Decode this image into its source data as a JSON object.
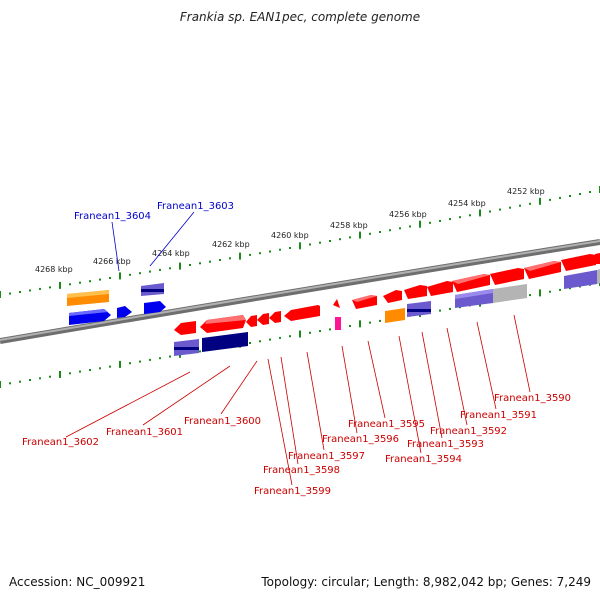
{
  "title": "Frankia sp. EAN1pec, complete genome",
  "footer": {
    "accession": "Accession: NC_009921",
    "topology": "Topology: circular; Length: 8,982,042 bp; Genes: 7,249"
  },
  "colors": {
    "forward_gene": "#ff0000",
    "reverse_gene": "#0000ff",
    "orange_gene": "#ff8c00",
    "purple_gene": "#6a5acd",
    "navy_gene": "#000080",
    "grey_gene": "#b4b4b4",
    "magenta_gene": "#ff1493",
    "tick_green": "#1a8a1a",
    "backbone": "#8c8c8c",
    "label_red": "#cc0000",
    "label_blue": "#0000cc"
  },
  "scale": {
    "ticks": [
      "4268 kbp",
      "4266 kbp",
      "4264 kbp",
      "4262 kbp",
      "4260 kbp",
      "4258 kbp",
      "4256 kbp",
      "4254 kbp",
      "4252 kbp"
    ]
  },
  "labels": {
    "top": [
      "Franean1_3604",
      "Franean1_3603"
    ],
    "bottom": [
      "Franean1_3602",
      "Franean1_3601",
      "Franean1_3600",
      "Franean1_3599",
      "Franean1_3598",
      "Franean1_3597",
      "Franean1_3596",
      "Franean1_3595",
      "Franean1_3594",
      "Franean1_3593",
      "Franean1_3592",
      "Franean1_3591",
      "Franean1_3590"
    ]
  }
}
